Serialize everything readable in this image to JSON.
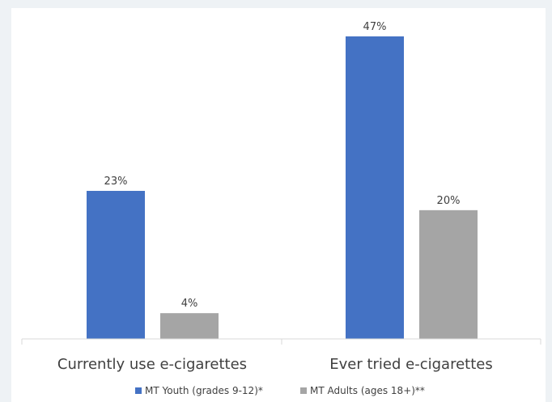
{
  "chart_data": {
    "type": "bar",
    "categories": [
      "Currently use e-cigarettes",
      "Ever tried e-cigarettes"
    ],
    "series": [
      {
        "name": "MT Youth (grades 9-12)*",
        "values": [
          23,
          47
        ],
        "labels": [
          "23%",
          "47%"
        ],
        "color": "#4472c4"
      },
      {
        "name": "MT Adults (ages 18+)**",
        "values": [
          4,
          20
        ],
        "labels": [
          "4%",
          "20%"
        ],
        "color": "#a5a5a5"
      }
    ],
    "ylim": [
      0,
      50
    ],
    "grid": false,
    "legend_position": "bottom"
  }
}
